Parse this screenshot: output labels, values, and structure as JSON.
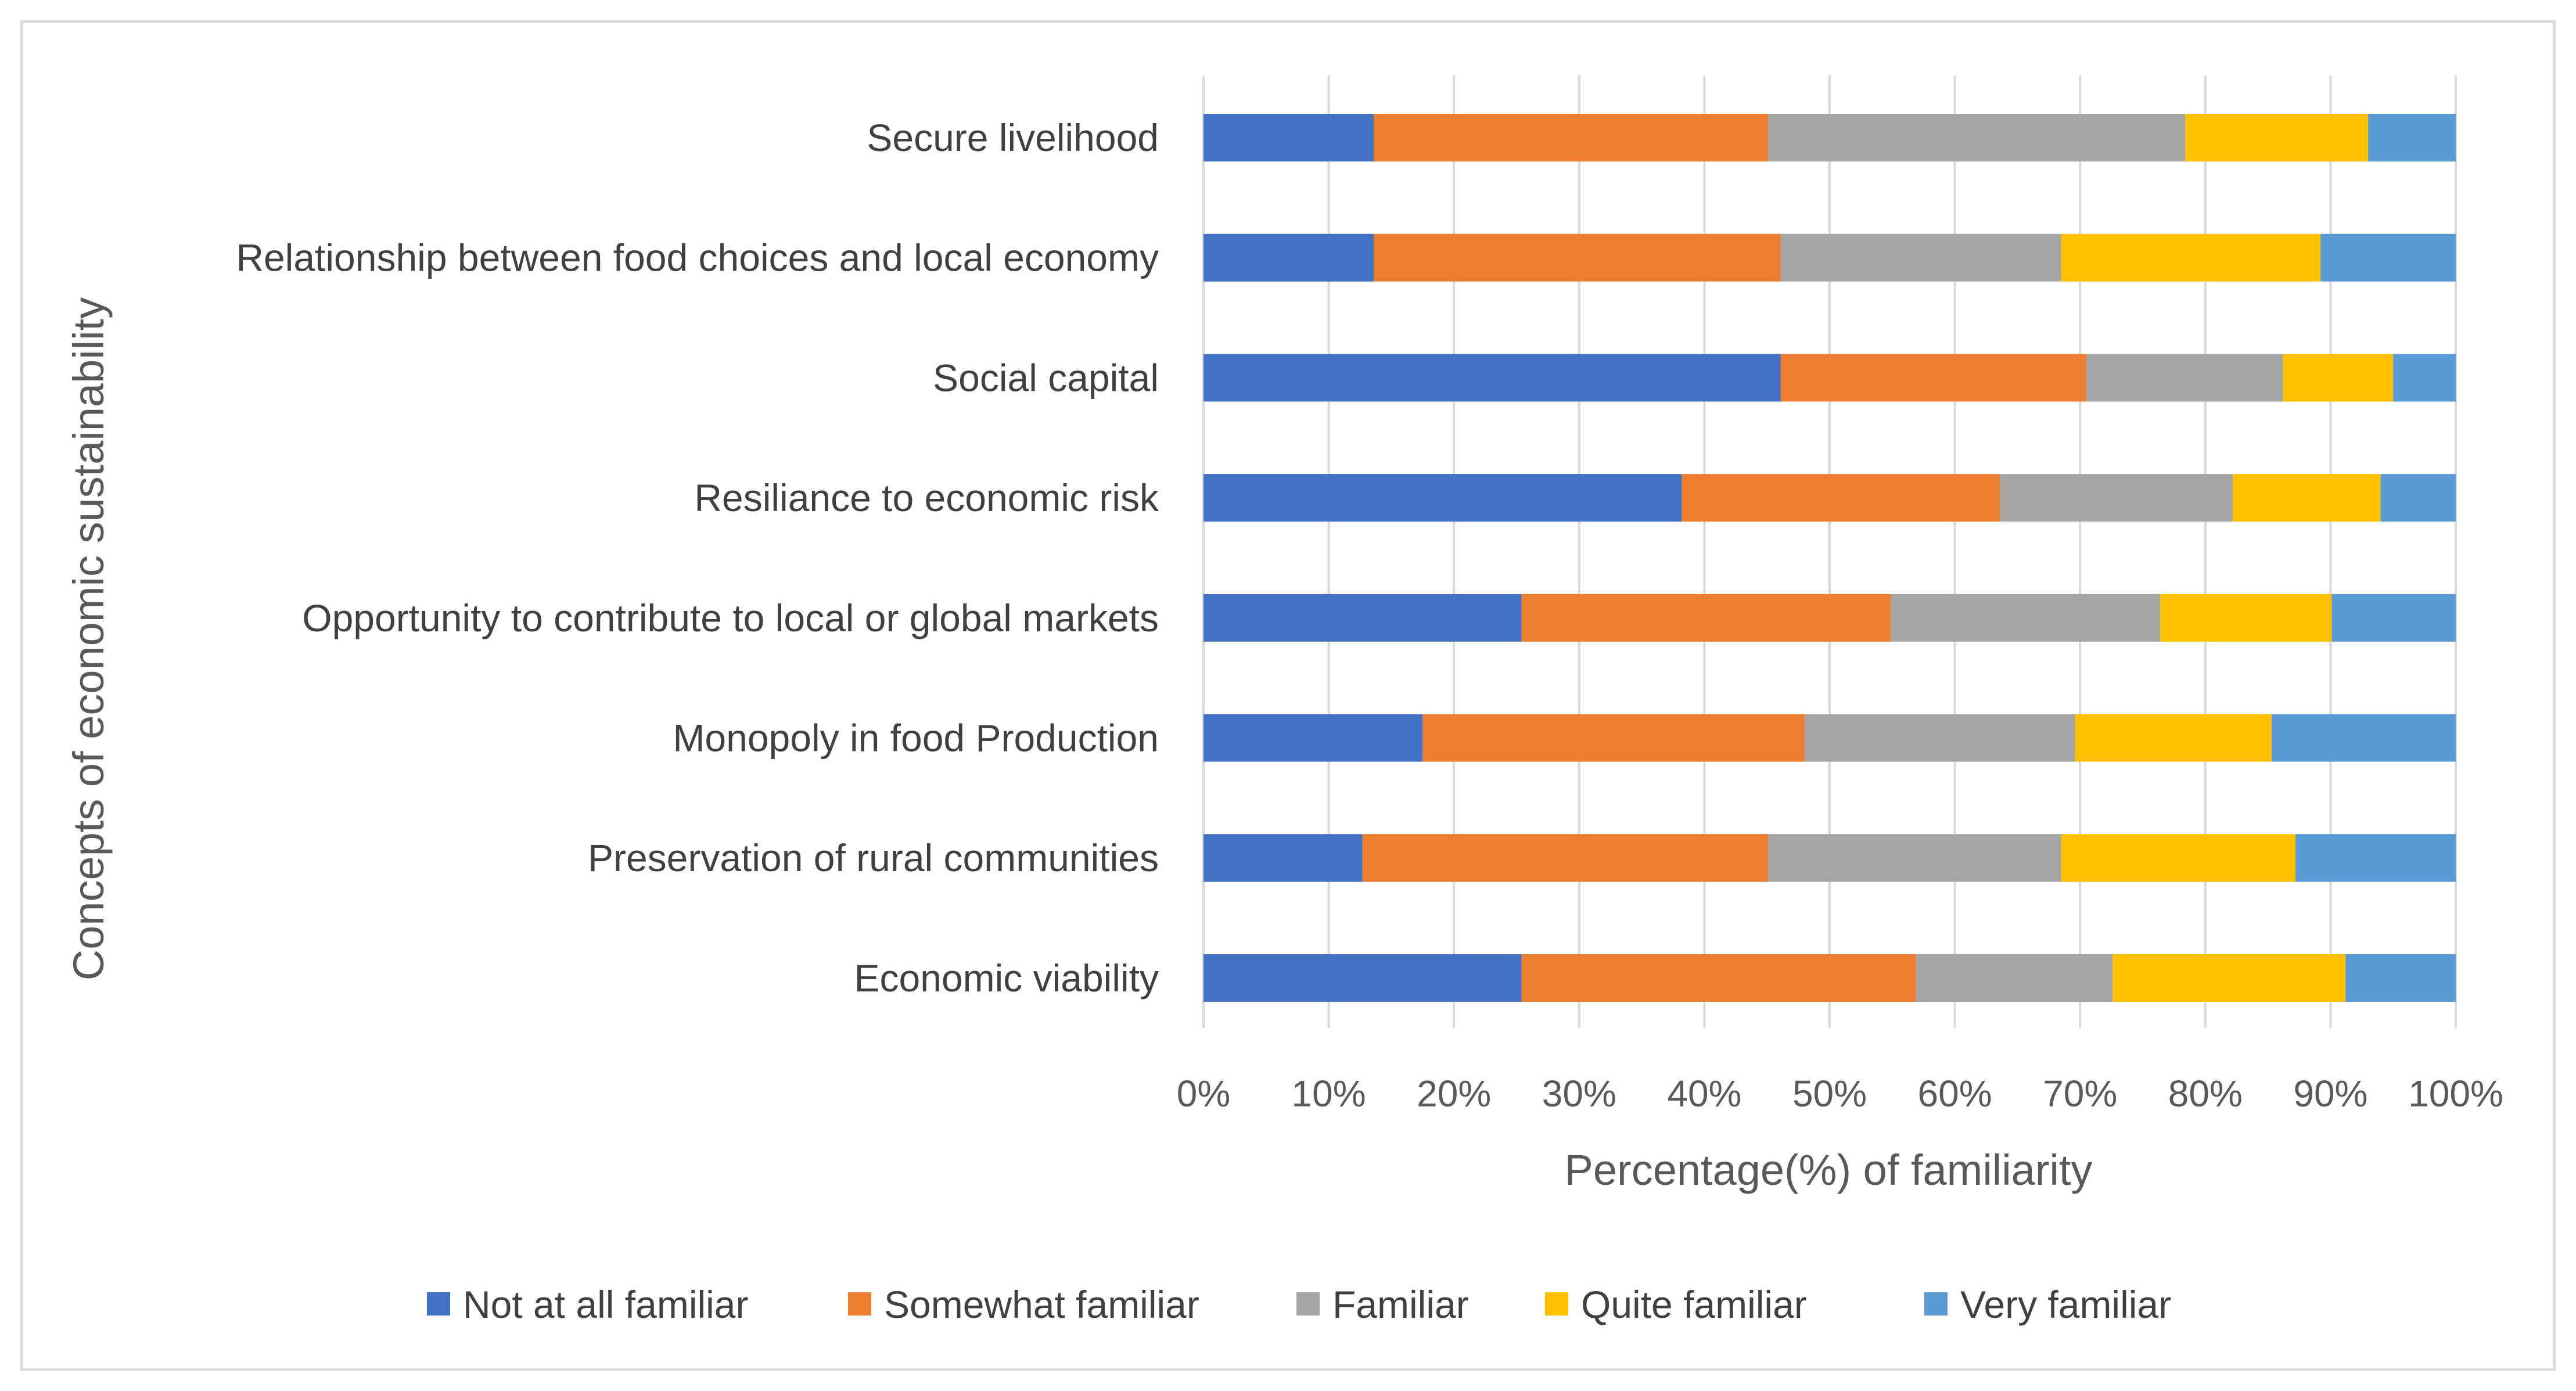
{
  "chart_data": {
    "type": "bar",
    "orientation": "horizontal",
    "stacked": "percent",
    "title": "",
    "xlabel": "Percentage(%) of familiarity",
    "ylabel": "Concepts of economic sustainability",
    "xlim": [
      0,
      100
    ],
    "x_ticks": [
      "0%",
      "10%",
      "20%",
      "30%",
      "40%",
      "50%",
      "60%",
      "70%",
      "80%",
      "90%",
      "100%"
    ],
    "grid": "vertical",
    "legend_position": "bottom",
    "categories": [
      "Secure livelihood",
      "Relationship between food choices and local economy",
      "Social capital",
      "Resiliance to economic risk",
      "Opportunity to contribute to local or global markets",
      "Monopoly in food Production",
      "Preservation of rural communities",
      "Economic viability"
    ],
    "series": [
      {
        "name": "Not at all familiar",
        "color": "#4472c4",
        "values": [
          13.6,
          13.6,
          46.1,
          38.2,
          25.4,
          17.5,
          12.7,
          25.4
        ]
      },
      {
        "name": "Somewhat familiar",
        "color": "#ed7d31",
        "values": [
          31.5,
          32.5,
          24.4,
          25.4,
          29.5,
          30.5,
          32.4,
          31.5
        ]
      },
      {
        "name": "Familiar",
        "color": "#a5a5a5",
        "values": [
          33.3,
          22.4,
          15.7,
          18.6,
          21.5,
          21.6,
          23.4,
          15.7
        ]
      },
      {
        "name": "Quite familiar",
        "color": "#ffc000",
        "values": [
          14.6,
          20.7,
          8.8,
          11.8,
          13.7,
          15.7,
          18.7,
          18.6
        ]
      },
      {
        "name": "Very familiar",
        "color": "#5b9bd5",
        "values": [
          7.0,
          10.8,
          5.0,
          6.0,
          9.9,
          14.7,
          12.8,
          8.8
        ]
      }
    ]
  }
}
